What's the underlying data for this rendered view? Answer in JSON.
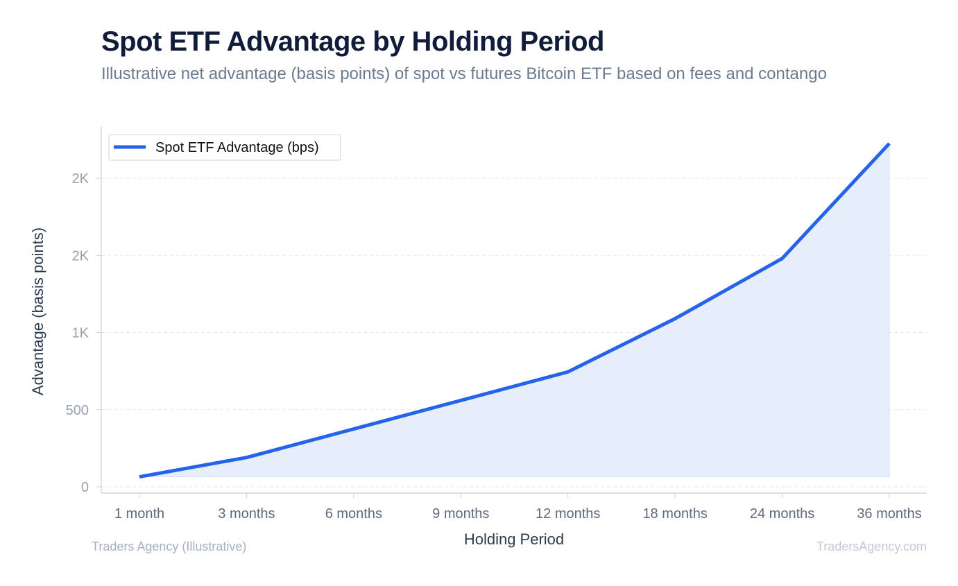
{
  "title": "Spot ETF Advantage by Holding Period",
  "subtitle": "Illustrative net advantage (basis points) of spot vs futures Bitcoin ETF based on fees and contango",
  "source": "Traders Agency (Illustrative)",
  "watermark": "TradersAgency.com",
  "colors": {
    "line": "#2563eb",
    "fill": "#e6eefb",
    "grid": "#e3e8ef",
    "axis": "#c8cfd9",
    "tick_label": "#96a1b2",
    "category_label": "#5f6b7d",
    "axis_title": "#2e3a4d"
  },
  "chart_data": {
    "type": "area",
    "title": "Spot ETF Advantage by Holding Period",
    "subtitle": "Illustrative net advantage (basis points) of spot vs futures Bitcoin ETF based on fees and contango",
    "xlabel": "Holding Period",
    "ylabel": "Advantage (basis points)",
    "categories": [
      "1 month",
      "3 months",
      "6 months",
      "9 months",
      "12 months",
      "18 months",
      "24 months",
      "36 months"
    ],
    "series": [
      {
        "name": "Spot ETF Advantage (bps)",
        "values": [
          65,
          190,
          375,
          560,
          745,
          1090,
          1480,
          2225
        ]
      }
    ],
    "ylim": [
      0,
      2300
    ],
    "yticks": [
      0,
      500,
      1000,
      1500,
      2000
    ],
    "ytick_labels": [
      "0",
      "500",
      "1K",
      "2K",
      "2K"
    ],
    "grid": true,
    "legend": "top-left"
  }
}
